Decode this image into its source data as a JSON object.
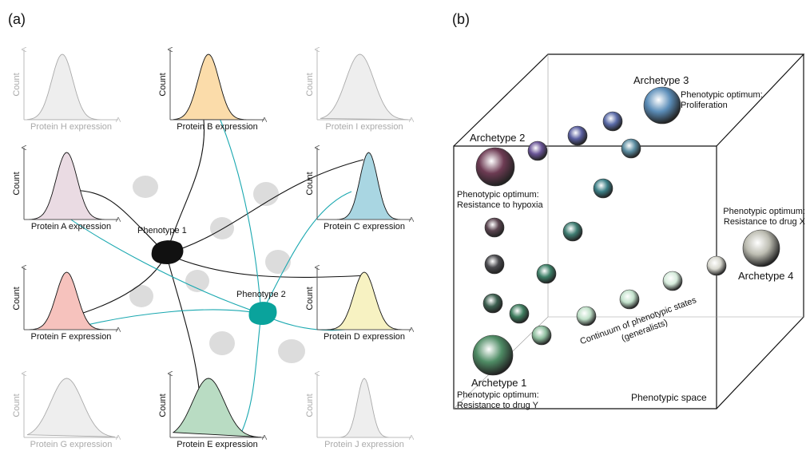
{
  "panels": {
    "a": {
      "label": "(a)",
      "histograms": [
        {
          "xlabel": "Protein H expression",
          "ylabel": "Count"
        },
        {
          "xlabel": "Protein B expression",
          "ylabel": "Count"
        },
        {
          "xlabel": "Protein I expression",
          "ylabel": "Count"
        },
        {
          "xlabel": "Protein A expression",
          "ylabel": "Count"
        },
        {
          "xlabel": "Protein C expression",
          "ylabel": "Count"
        },
        {
          "xlabel": "Protein F expression",
          "ylabel": "Count"
        },
        {
          "xlabel": "Protein D expression",
          "ylabel": "Count"
        },
        {
          "xlabel": "Protein G expression",
          "ylabel": "Count"
        },
        {
          "xlabel": "Protein E expression",
          "ylabel": "Count"
        },
        {
          "xlabel": "Protein J expression",
          "ylabel": "Count"
        }
      ],
      "phenotypes": [
        "Phenotype 1",
        "Phenotype 2"
      ]
    },
    "b": {
      "label": "(b)",
      "annotations": [
        {
          "title": "Archetype 3",
          "note": [
            "Phenotypic optimum:",
            "Proliferation"
          ]
        },
        {
          "title": "Archetype 2",
          "note": [
            "Phenotypic optimum:",
            "Resistance to hypoxia"
          ]
        },
        {
          "title": "Archetype 4",
          "note": [
            "Phenotypic optimum:",
            "Resistance to drug X"
          ]
        },
        {
          "title": "Archetype 1",
          "note": [
            "Phenotypic optimum:",
            "Resistance to drug Y"
          ]
        }
      ],
      "continuum": [
        "Continuum of phenotypic states",
        "(generalists)"
      ],
      "space_label": "Phenotypic space"
    }
  }
}
